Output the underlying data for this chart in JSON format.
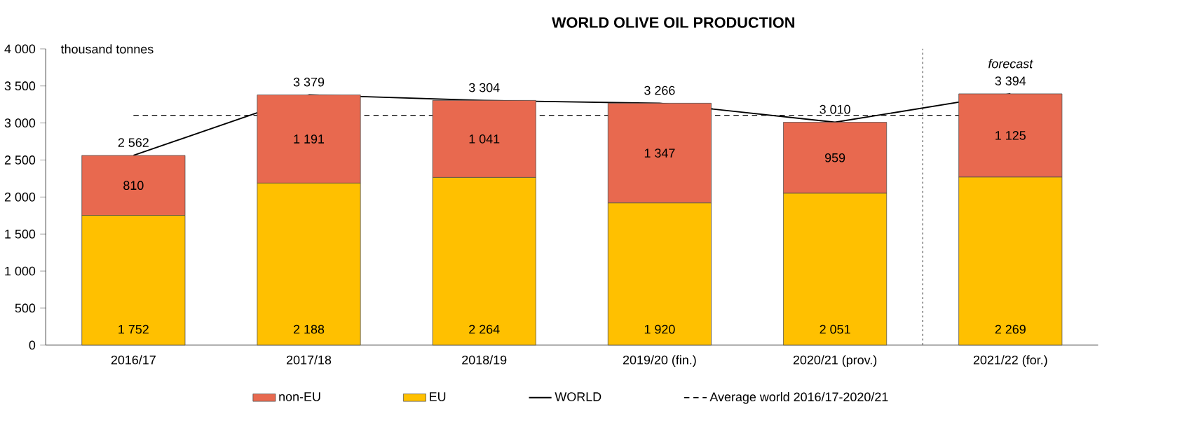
{
  "chart_data": {
    "type": "bar",
    "stacked": true,
    "title": "WORLD OLIVE OIL PRODUCTION",
    "ylabel": "thousand tonnes",
    "categories": [
      "2016/17",
      "2017/18",
      "2018/19",
      "2019/20 (fin.)",
      "2020/21 (prov.)",
      "2021/22 (for.)"
    ],
    "series": [
      {
        "name": "EU",
        "color": "#ffc000",
        "values": [
          1752,
          2188,
          2264,
          1920,
          2051,
          2269
        ],
        "value_labels": [
          "1 752",
          "2 188",
          "2 264",
          "1 920",
          "2 051",
          "2 269"
        ]
      },
      {
        "name": "non-EU",
        "color": "#e8694f",
        "values": [
          810,
          1191,
          1041,
          1347,
          959,
          1125
        ],
        "value_labels": [
          "810",
          "1 191",
          "1 041",
          "1 347",
          "959",
          "1 125"
        ]
      },
      {
        "name": "WORLD",
        "type": "line",
        "color": "#000000",
        "values": [
          2562,
          3379,
          3304,
          3266,
          3010,
          3394
        ],
        "value_labels": [
          "2 562",
          "3 379",
          "3 304",
          "3 266",
          "3 010",
          "3 394"
        ]
      }
    ],
    "ylim": [
      0,
      4000
    ],
    "yticks": [
      {
        "value": 0,
        "label": "0"
      },
      {
        "value": 500,
        "label": "500"
      },
      {
        "value": 1000,
        "label": "1 000"
      },
      {
        "value": 1500,
        "label": "1 500"
      },
      {
        "value": 2000,
        "label": "2 000"
      },
      {
        "value": 2500,
        "label": "2 500"
      },
      {
        "value": 3000,
        "label": "3 000"
      },
      {
        "value": 3500,
        "label": "3 500"
      },
      {
        "value": 4000,
        "label": "4 000"
      }
    ],
    "ref_lines": [
      {
        "axis": "y",
        "value": 3104.2,
        "label": "Average world 2016/17-2020/21",
        "line_style": "dashed",
        "color": "#000000"
      }
    ],
    "annotations": [
      "forecast"
    ],
    "legend": "bottom",
    "grid": false
  }
}
